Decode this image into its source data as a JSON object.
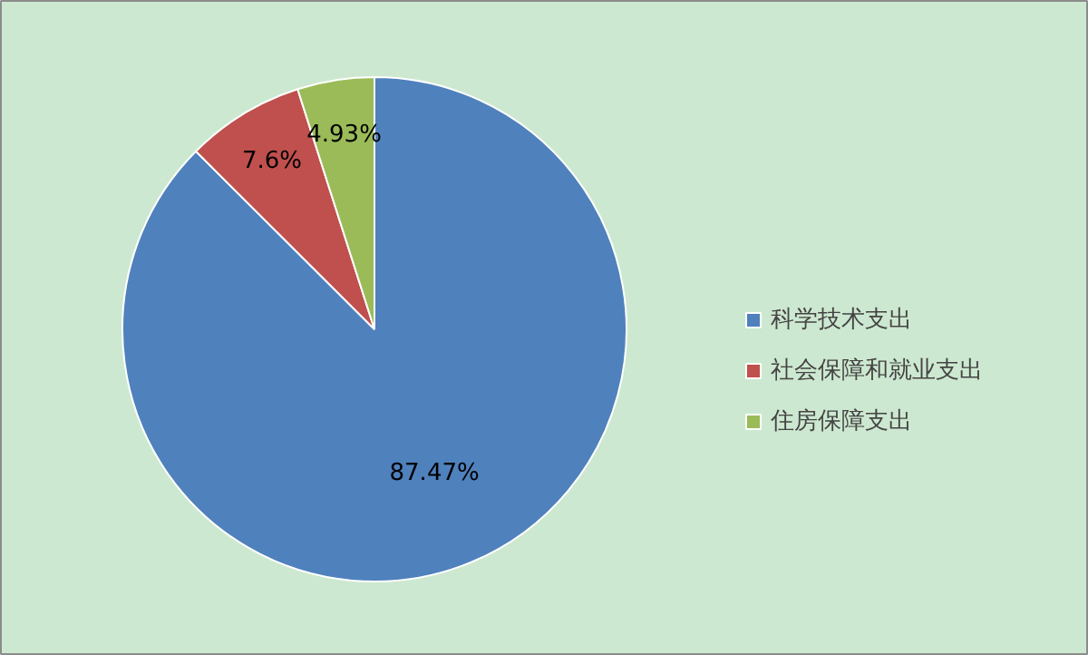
{
  "chart_data": {
    "type": "pie",
    "categories": [
      "科学技术支出",
      "社会保障和就业支出",
      "住房保障支出"
    ],
    "values": [
      87.47,
      7.6,
      4.93
    ],
    "colors": [
      "#4f81bd",
      "#c0504d",
      "#9bbb59"
    ],
    "value_labels": [
      "87.47%",
      "7.6%",
      "4.93%"
    ],
    "legend": "right"
  }
}
